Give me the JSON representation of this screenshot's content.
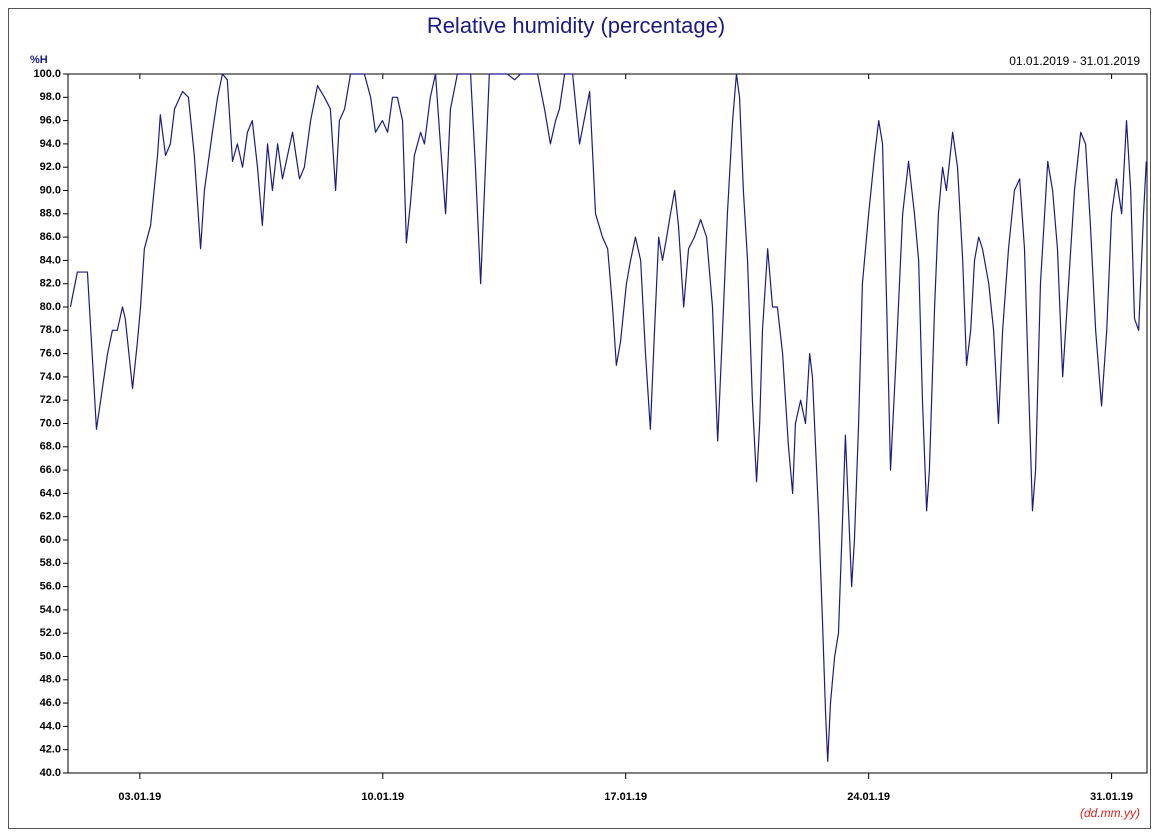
{
  "chart_data": {
    "type": "line",
    "title": "Relative humidity (percentage)",
    "y_label": "%H",
    "date_range": "01.01.2019 - 31.01.2019",
    "x_label": "(dd.mm.yy)",
    "color": "#1b1b84",
    "xlim": [
      0.93,
      32.02
    ],
    "ylim": [
      40,
      100
    ],
    "xticks": [
      {
        "value": 3,
        "label": "03.01.19"
      },
      {
        "value": 10,
        "label": "10.01.19"
      },
      {
        "value": 17,
        "label": "17.01.19"
      },
      {
        "value": 24,
        "label": "24.01.19"
      },
      {
        "value": 31,
        "label": "31.01.19"
      }
    ],
    "yticks": [
      {
        "value": 40,
        "label": "40.0"
      },
      {
        "value": 42,
        "label": "42.0"
      },
      {
        "value": 44,
        "label": "44.0"
      },
      {
        "value": 46,
        "label": "46.0"
      },
      {
        "value": 48,
        "label": "48.0"
      },
      {
        "value": 50,
        "label": "50.0"
      },
      {
        "value": 52,
        "label": "52.0"
      },
      {
        "value": 54,
        "label": "54.0"
      },
      {
        "value": 56,
        "label": "56.0"
      },
      {
        "value": 58,
        "label": "58.0"
      },
      {
        "value": 60,
        "label": "60.0"
      },
      {
        "value": 62,
        "label": "62.0"
      },
      {
        "value": 64,
        "label": "64.0"
      },
      {
        "value": 66,
        "label": "66.0"
      },
      {
        "value": 68,
        "label": "68.0"
      },
      {
        "value": 70,
        "label": "70.0"
      },
      {
        "value": 72,
        "label": "72.0"
      },
      {
        "value": 74,
        "label": "74.0"
      },
      {
        "value": 76,
        "label": "76.0"
      },
      {
        "value": 78,
        "label": "78.0"
      },
      {
        "value": 80,
        "label": "80.0"
      },
      {
        "value": 82,
        "label": "82.0"
      },
      {
        "value": 84,
        "label": "84.0"
      },
      {
        "value": 86,
        "label": "86.0"
      },
      {
        "value": 88,
        "label": "88.0"
      },
      {
        "value": 90,
        "label": "90.0"
      },
      {
        "value": 92,
        "label": "92.0"
      },
      {
        "value": 94,
        "label": "94.0"
      },
      {
        "value": 96,
        "label": "96.0"
      },
      {
        "value": 98,
        "label": "98.0"
      },
      {
        "value": 100,
        "label": "100.0"
      }
    ],
    "x": [
      1.0,
      1.2,
      1.49,
      1.75,
      1.92,
      2.07,
      2.21,
      2.35,
      2.5,
      2.58,
      2.79,
      2.93,
      3.02,
      3.13,
      3.31,
      3.51,
      3.59,
      3.74,
      3.88,
      4.0,
      4.23,
      4.4,
      4.57,
      4.75,
      4.86,
      5.09,
      5.24,
      5.38,
      5.52,
      5.67,
      5.81,
      5.96,
      6.1,
      6.24,
      6.39,
      6.53,
      6.68,
      6.82,
      6.97,
      7.11,
      7.4,
      7.6,
      7.74,
      7.92,
      8.12,
      8.32,
      8.49,
      8.64,
      8.75,
      8.9,
      9.07,
      9.27,
      9.47,
      9.65,
      9.79,
      9.99,
      10.14,
      10.28,
      10.42,
      10.57,
      10.68,
      10.8,
      10.91,
      11.09,
      11.2,
      11.37,
      11.52,
      11.66,
      11.81,
      11.95,
      12.15,
      12.35,
      12.53,
      12.67,
      12.82,
      12.93,
      13.07,
      13.31,
      13.59,
      13.8,
      13.97,
      14.17,
      14.46,
      14.66,
      14.83,
      14.98,
      15.09,
      15.24,
      15.47,
      15.67,
      15.96,
      16.13,
      16.33,
      16.48,
      16.62,
      16.73,
      16.85,
      17.02,
      17.14,
      17.28,
      17.43,
      17.57,
      17.71,
      17.83,
      17.95,
      18.06,
      18.18,
      18.29,
      18.41,
      18.52,
      18.67,
      18.81,
      18.98,
      19.16,
      19.33,
      19.5,
      19.65,
      19.79,
      19.93,
      20.08,
      20.19,
      20.28,
      20.39,
      20.51,
      20.65,
      20.77,
      20.86,
      20.94,
      21.09,
      21.23,
      21.37,
      21.52,
      21.69,
      21.81,
      21.89,
      22.04,
      22.18,
      22.3,
      22.38,
      22.47,
      22.56,
      22.67,
      22.76,
      22.82,
      22.9,
      23.02,
      23.13,
      23.25,
      23.33,
      23.51,
      23.59,
      23.71,
      23.82,
      24.0,
      24.17,
      24.29,
      24.4,
      24.52,
      24.63,
      24.78,
      24.98,
      25.15,
      25.32,
      25.44,
      25.55,
      25.67,
      25.75,
      25.9,
      26.01,
      26.13,
      26.24,
      26.42,
      26.56,
      26.71,
      26.82,
      26.94,
      27.05,
      27.17,
      27.28,
      27.46,
      27.6,
      27.74,
      27.86,
      28.03,
      28.2,
      28.35,
      28.49,
      28.61,
      28.72,
      28.81,
      28.95,
      29.16,
      29.3,
      29.44,
      29.59,
      29.76,
      29.93,
      30.11,
      30.25,
      30.39,
      30.54,
      30.71,
      30.86,
      31.0,
      31.14,
      31.29,
      31.43,
      31.55,
      31.66,
      31.78,
      31.92,
      32.0
    ],
    "values": [
      80,
      83,
      83,
      69.5,
      73,
      76,
      78,
      78,
      80,
      79,
      73,
      77,
      80,
      85,
      87,
      93,
      96.5,
      93,
      94,
      97,
      98.5,
      98,
      93,
      85,
      90,
      95,
      98,
      100,
      99.5,
      92.5,
      94,
      92,
      95,
      96,
      92,
      87,
      94,
      90,
      94,
      91,
      95,
      91,
      92,
      96,
      99,
      98,
      97,
      90,
      96,
      97,
      100,
      100,
      100,
      98,
      95,
      96,
      95,
      98,
      98,
      96,
      85.5,
      89,
      93,
      95,
      94,
      98,
      100,
      94,
      88,
      97,
      100,
      100,
      100,
      92,
      82,
      90,
      100,
      100,
      100,
      99.5,
      100,
      100,
      100,
      97,
      94,
      96,
      97,
      100,
      100,
      94,
      98.5,
      88,
      86,
      85,
      80,
      75,
      77,
      82,
      84,
      86,
      84,
      76,
      69.5,
      78,
      86,
      84,
      86,
      88,
      90,
      87,
      80,
      85,
      86,
      87.5,
      86,
      80,
      68.5,
      78,
      88,
      96,
      100,
      98,
      90,
      84,
      72,
      65,
      70,
      78,
      85,
      80,
      80,
      76,
      68,
      64,
      70,
      72,
      70,
      76,
      74,
      68,
      62,
      53,
      45,
      41,
      46,
      50,
      52,
      62,
      69,
      56,
      60,
      70,
      82,
      88,
      93,
      96,
      94,
      80,
      66,
      75,
      88,
      92.5,
      88,
      84,
      72,
      62.5,
      66,
      80,
      88,
      92,
      90,
      95,
      92,
      84,
      75,
      78,
      84,
      86,
      85,
      82,
      78,
      70,
      78,
      85,
      90,
      91,
      85,
      73,
      62.5,
      66,
      82,
      92.5,
      90,
      85,
      74,
      82,
      90,
      95,
      94,
      87,
      78,
      71.5,
      78,
      88,
      91,
      88,
      96,
      90,
      79,
      78,
      88,
      92.5
    ]
  }
}
